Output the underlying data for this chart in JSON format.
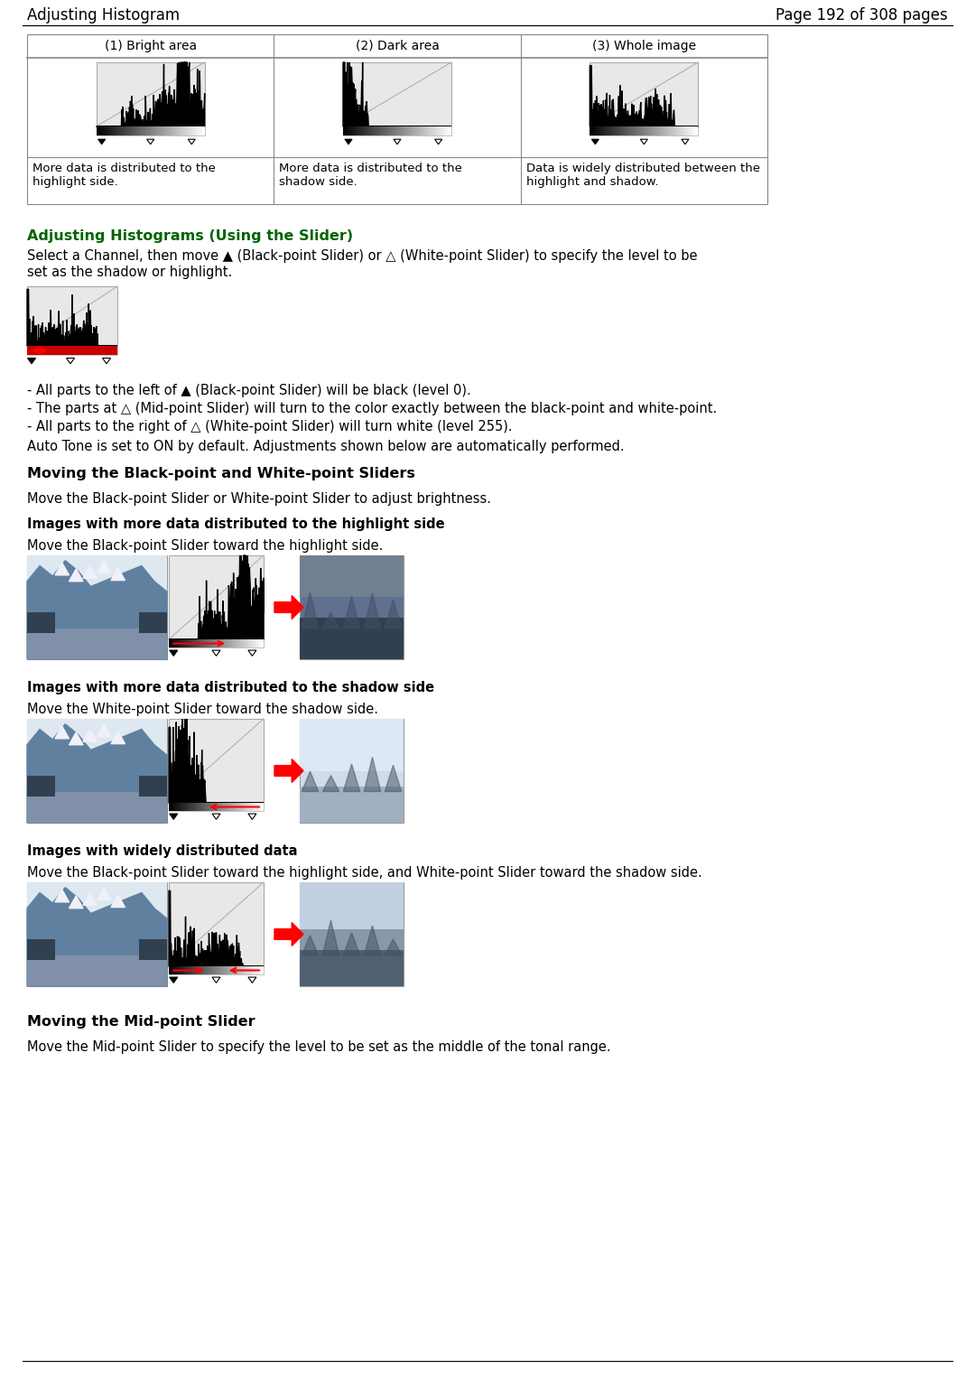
{
  "title_left": "Adjusting Histogram",
  "title_right": "Page 192 of 308 pages",
  "page_bg": "#ffffff",
  "section_heading_color": "#006400",
  "body_text_color": "#000000",
  "table_headers": [
    "(1) Bright area",
    "(2) Dark area",
    "(3) Whole image"
  ],
  "table_captions": [
    "More data is distributed to the\nhighlight side.",
    "More data is distributed to the\nshadow side.",
    "Data is widely distributed between the\nhighlight and shadow."
  ],
  "section1_title": "Adjusting Histograms (Using the Slider)",
  "section1_para1": "Select a Channel, then move ▲ (Black-point Slider) or △ (White-point Slider) to specify the level to be",
  "section1_para2": "set as the shadow or highlight.",
  "bullet1": "- All parts to the left of ▲ (Black-point Slider) will be black (level 0).",
  "bullet2": "- The parts at △ (Mid-point Slider) will turn to the color exactly between the black-point and white-point.",
  "bullet3": "- All parts to the right of △ (White-point Slider) will turn white (level 255).",
  "auto_tone": "Auto Tone is set to ON by default. Adjustments shown below are automatically performed.",
  "section2_title": "Moving the Black-point and White-point Sliders",
  "section2_para": "Move the Black-point Slider or White-point Slider to adjust brightness.",
  "section2_sub1": "Images with more data distributed to the highlight side",
  "section2_sub1_para": "Move the Black-point Slider toward the highlight side.",
  "section2_sub2": "Images with more data distributed to the shadow side",
  "section2_sub2_para": "Move the White-point Slider toward the shadow side.",
  "section2_sub3": "Images with widely distributed data",
  "section2_sub3_para": "Move the Black-point Slider toward the highlight side, and White-point Slider toward the shadow side.",
  "section3_title": "Moving the Mid-point Slider",
  "section3_para": "Move the Mid-point Slider to specify the level to be set as the middle of the tonal range."
}
